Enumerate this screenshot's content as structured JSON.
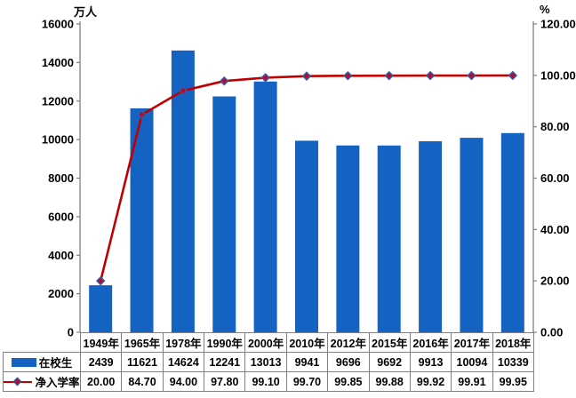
{
  "colors": {
    "bar": "#1463C3",
    "line": "#C00000",
    "marker_fill": "#B01030",
    "marker_stroke": "#2F5FA8",
    "axis": "#7F7F7F"
  },
  "chart_data": {
    "type": "combo-bar-line",
    "title": "",
    "categories": [
      "1949年",
      "1965年",
      "1978年",
      "1990年",
      "2000年",
      "2010年",
      "2012年",
      "2015年",
      "2016年",
      "2017年",
      "2018年"
    ],
    "series": [
      {
        "name": "在校生",
        "type": "bar",
        "axis": "left",
        "color": "#1463C3",
        "values": [
          2439,
          11621,
          14624,
          12241,
          13013,
          9941,
          9696,
          9692,
          9913,
          10094,
          10339
        ]
      },
      {
        "name": "净入学率",
        "type": "line",
        "axis": "right",
        "color": "#C00000",
        "marker": "diamond",
        "marker_fill": "#B01030",
        "marker_stroke": "#2F5FA8",
        "values": [
          20.0,
          84.7,
          94.0,
          97.8,
          99.1,
          99.7,
          99.85,
          99.88,
          99.92,
          99.91,
          99.95
        ]
      }
    ],
    "left_axis": {
      "title": "万人",
      "min": 0,
      "max": 16000,
      "step": 2000,
      "ticks": [
        "0",
        "2000",
        "4000",
        "6000",
        "8000",
        "10000",
        "12000",
        "14000",
        "16000"
      ]
    },
    "right_axis": {
      "title": "%",
      "min": 0,
      "max": 120,
      "step": 20,
      "decimals": 2,
      "ticks": [
        "0.00",
        "20.00",
        "40.00",
        "60.00",
        "80.00",
        "100.00",
        "120.00"
      ]
    },
    "grid": false,
    "legend_position": "data-table-left",
    "data_table": true
  }
}
